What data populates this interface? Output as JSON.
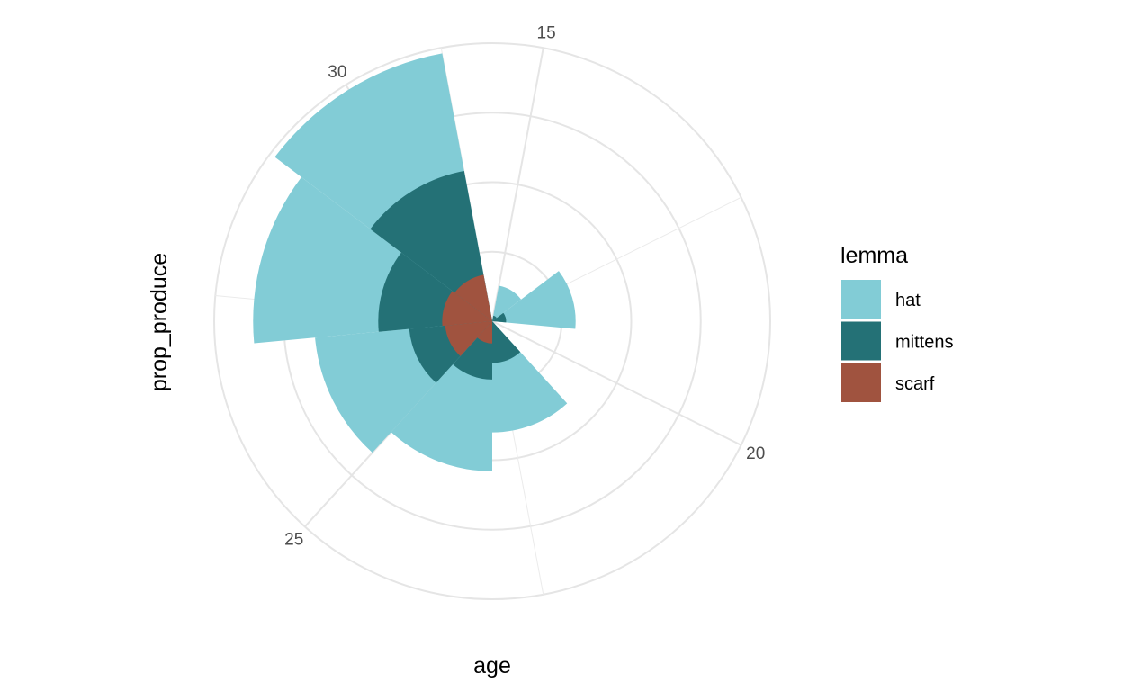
{
  "chart_data": {
    "type": "polar-bar",
    "xlabel": "age",
    "ylabel": "prop_produce",
    "x_ticks": [
      15,
      20,
      25,
      30
    ],
    "x_range": [
      14.5,
      31.5
    ],
    "y_range": [
      0,
      1
    ],
    "grid": true,
    "legend": {
      "title": "lemma",
      "position": "right"
    },
    "categories": [
      16,
      18,
      22,
      24,
      26,
      28,
      30
    ],
    "series": [
      {
        "name": "hat",
        "color": "#82CCD6",
        "values": [
          0.13,
          0.3,
          0.4,
          0.54,
          0.64,
          0.86,
          0.98
        ]
      },
      {
        "name": "mittens",
        "color": "#247176",
        "values": [
          0.02,
          0.05,
          0.15,
          0.21,
          0.3,
          0.41,
          0.55
        ]
      },
      {
        "name": "scarf",
        "color": "#A0533F",
        "values": [
          0.0,
          0.0,
          0.0,
          0.08,
          0.17,
          0.18,
          0.17
        ]
      }
    ]
  }
}
